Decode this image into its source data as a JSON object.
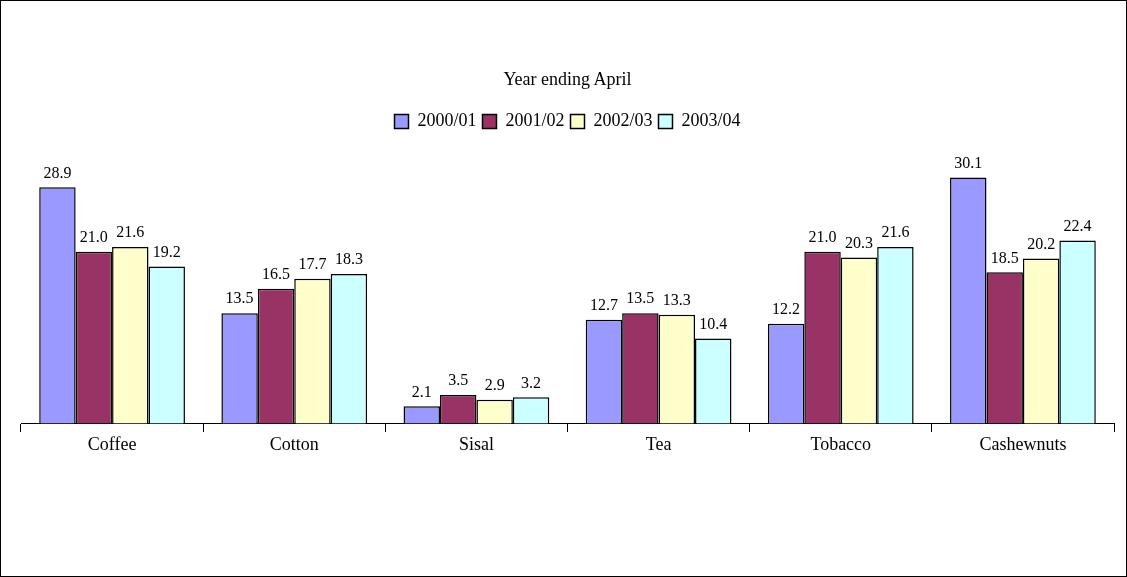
{
  "chart_data": {
    "type": "bar",
    "legend_title": "Year ending April",
    "legend": "top",
    "categories": [
      "Coffee",
      "Cotton",
      "Sisal",
      "Tea",
      "Tobacco",
      "Cashewnuts"
    ],
    "series": [
      {
        "name": "2000/01",
        "color": "#9999ff",
        "values": [
          28.9,
          13.5,
          2.1,
          12.7,
          12.2,
          30.1
        ],
        "value_labels": [
          "28.9",
          "13.5",
          "2.1",
          "12.7",
          "12.2",
          "30.1"
        ]
      },
      {
        "name": "2001/02",
        "color": "#993366",
        "values": [
          21.0,
          16.5,
          3.5,
          13.5,
          21.0,
          18.5
        ],
        "value_labels": [
          "21.0",
          "16.5",
          "3.5",
          "13.5",
          "21.0",
          "18.5"
        ]
      },
      {
        "name": "2002/03",
        "color": "#ffffcc",
        "values": [
          21.6,
          17.7,
          2.9,
          13.3,
          20.3,
          20.2
        ],
        "value_labels": [
          "21.6",
          "17.7",
          "2.9",
          "13.3",
          "20.3",
          "20.2"
        ]
      },
      {
        "name": "2003/04",
        "color": "#ccffff",
        "values": [
          19.2,
          18.3,
          3.2,
          10.4,
          21.6,
          22.4
        ],
        "value_labels": [
          "19.2",
          "18.3",
          "3.2",
          "10.4",
          "21.6",
          "22.4"
        ]
      }
    ]
  }
}
